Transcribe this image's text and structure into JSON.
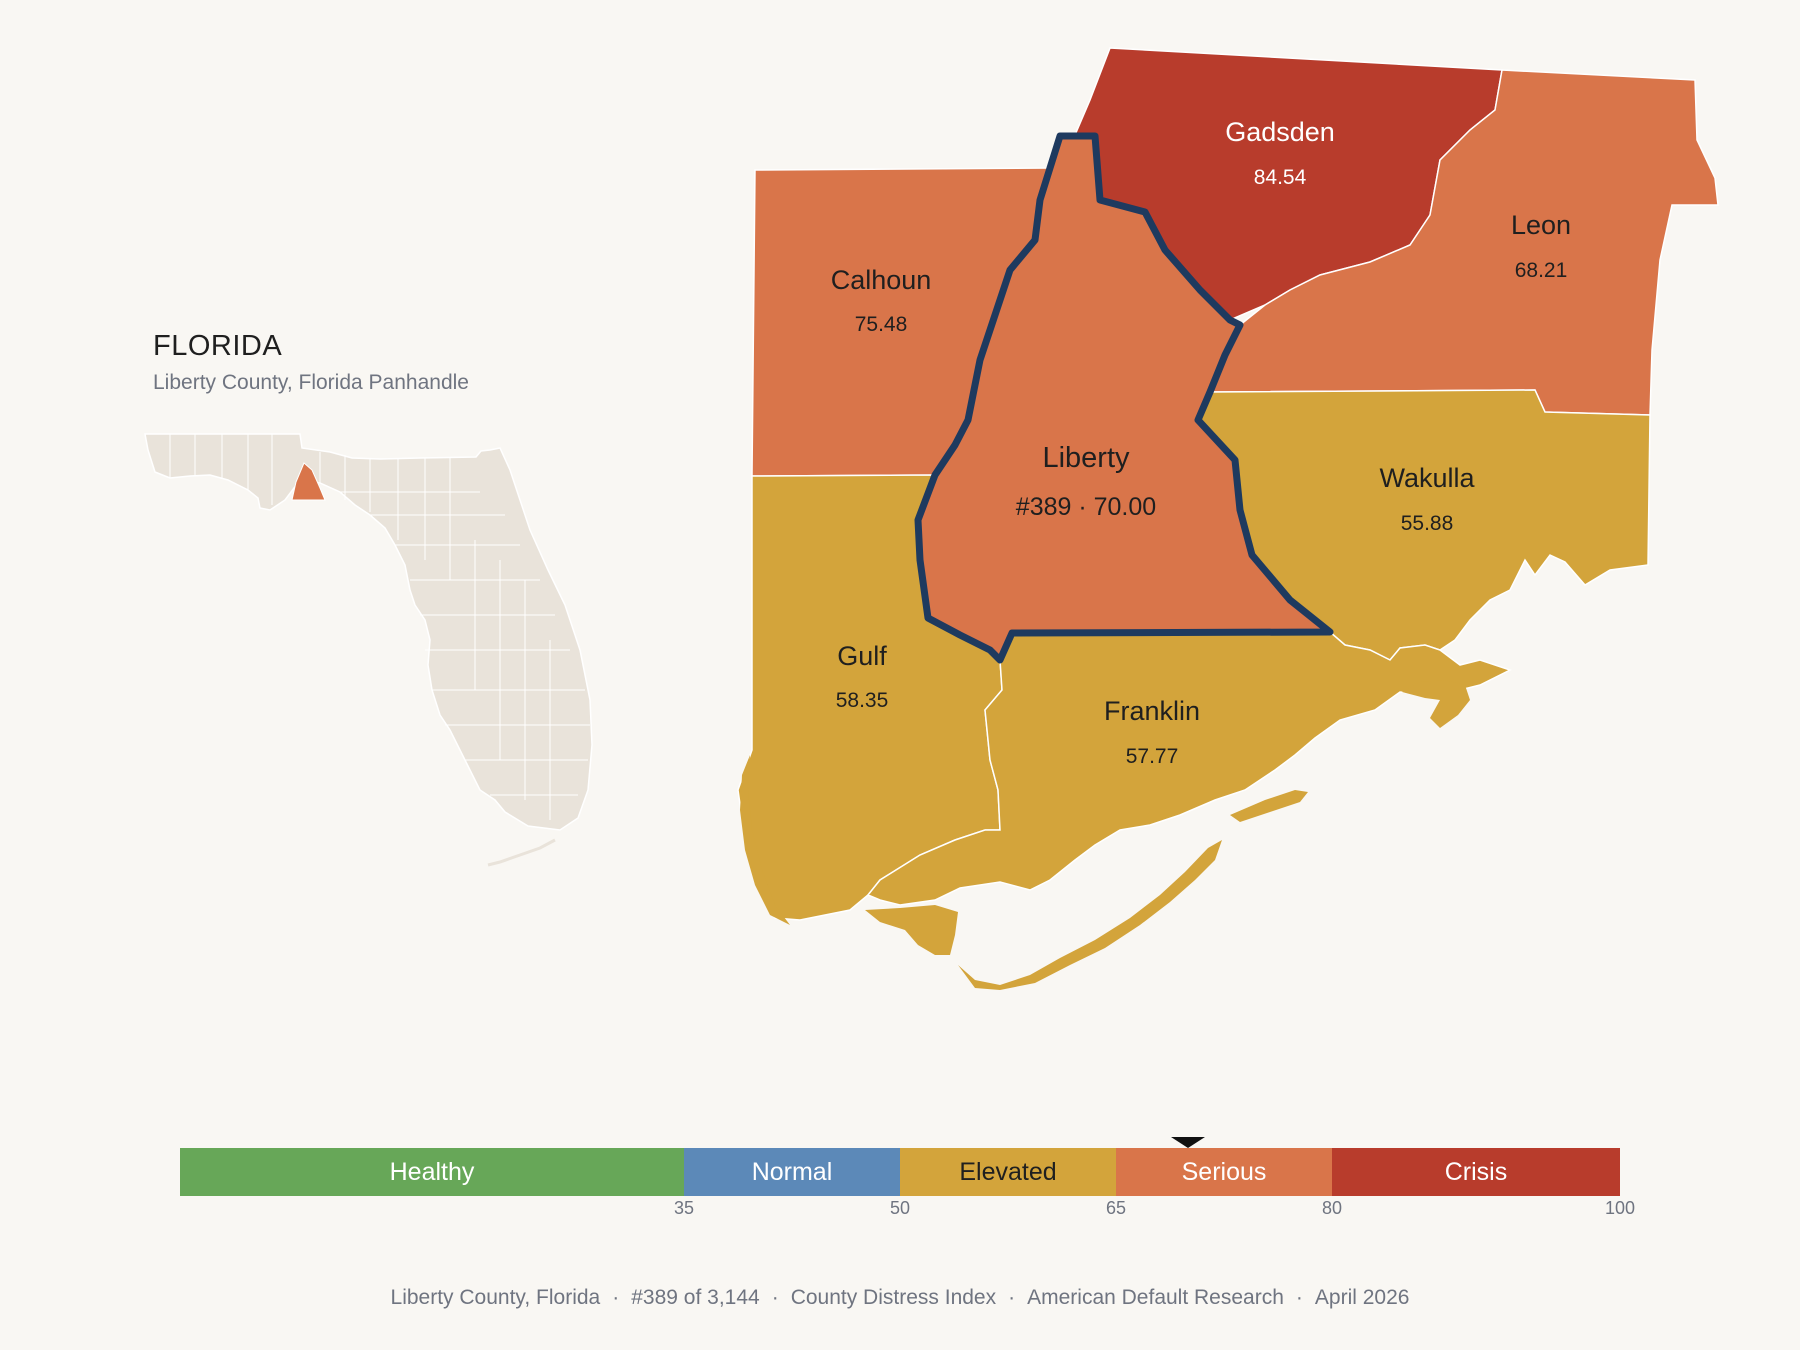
{
  "header": {
    "state": "FLORIDA",
    "subtitle": "Liberty County, Florida Panhandle"
  },
  "counties": [
    {
      "id": "gadsden",
      "name": "Gadsden",
      "value": "84.54",
      "color": "#b83c2c"
    },
    {
      "id": "calhoun",
      "name": "Calhoun",
      "value": "75.48",
      "color": "#d9754a"
    },
    {
      "id": "leon",
      "name": "Leon",
      "value": "68.21",
      "color": "#d9754a"
    },
    {
      "id": "liberty",
      "name": "Liberty",
      "value": "#389 · 70.00",
      "color": "#d9754a",
      "highlighted": true
    },
    {
      "id": "wakulla",
      "name": "Wakulla",
      "value": "55.88",
      "color": "#d3a43b"
    },
    {
      "id": "gulf",
      "name": "Gulf",
      "value": "58.35",
      "color": "#d3a43b"
    },
    {
      "id": "franklin",
      "name": "Franklin",
      "value": "57.77",
      "color": "#d3a43b"
    }
  ],
  "legend": {
    "categories": [
      {
        "label": "Healthy",
        "min": 0,
        "max": 35,
        "color": "#67a758"
      },
      {
        "label": "Normal",
        "min": 35,
        "max": 50,
        "color": "#5c89b8"
      },
      {
        "label": "Elevated",
        "min": 50,
        "max": 65,
        "color": "#d3a43b"
      },
      {
        "label": "Serious",
        "min": 65,
        "max": 80,
        "color": "#d9754a"
      },
      {
        "label": "Crisis",
        "min": 80,
        "max": 100,
        "color": "#b83c2c"
      }
    ],
    "ticks": [
      "35",
      "50",
      "65",
      "80",
      "100"
    ],
    "marker_value": 70.0
  },
  "footer": {
    "location": "Liberty County, Florida",
    "rank": "#389 of 3,144",
    "index": "County Distress Index",
    "source": "American Default Research",
    "date": "April 2026"
  },
  "colors": {
    "background": "#f9f7f3",
    "state_fill": "#e9e3da",
    "highlight_border": "#1e3a5f"
  }
}
